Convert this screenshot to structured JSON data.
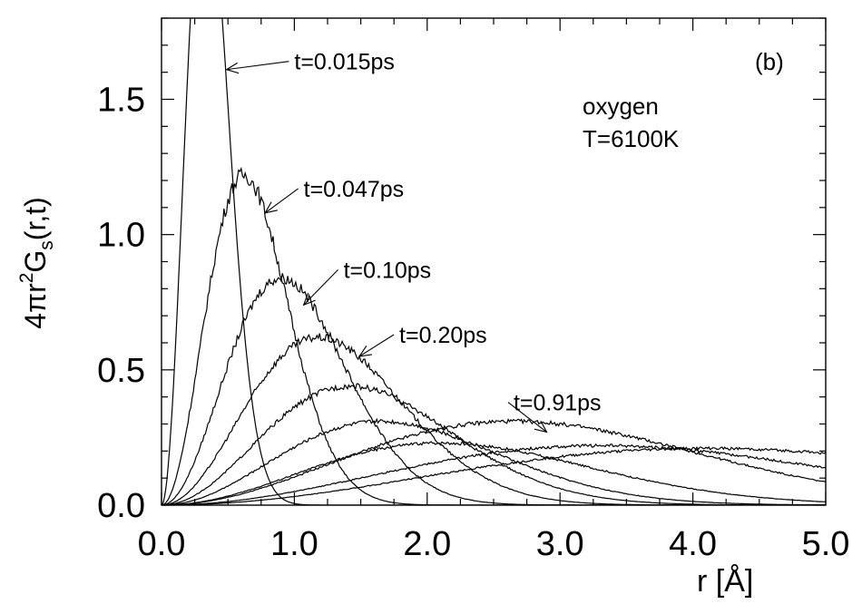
{
  "chart_data": {
    "type": "line",
    "panel_label": "(b)",
    "species": "oxygen",
    "temperature": "T=6100K",
    "xlabel": "r [Å]",
    "ylabel": {
      "pre": "4πr",
      "sup": "2",
      "mid": "G",
      "sub": "s",
      "post": "(r,t)"
    },
    "xlim": [
      0,
      5
    ],
    "ylim": [
      0,
      1.8
    ],
    "xticks": [
      "0.0",
      "1.0",
      "2.0",
      "3.0",
      "4.0",
      "5.0"
    ],
    "yticks": [
      "0.0",
      "0.5",
      "1.0",
      "1.5"
    ],
    "series": [
      {
        "peak": [
          0.33,
          2.35
        ],
        "width": 0.19
      },
      {
        "peak": [
          0.62,
          1.22
        ],
        "width": 0.36
      },
      {
        "peak": [
          0.9,
          0.84
        ],
        "width": 0.52
      },
      {
        "peak": [
          1.18,
          0.62
        ],
        "width": 0.71
      },
      {
        "peak": [
          1.42,
          0.44
        ],
        "width": 0.96
      },
      {
        "peak": [
          1.65,
          0.31
        ],
        "width": 1.3
      },
      {
        "peak": [
          2.1,
          0.23
        ],
        "width": 1.78
      },
      {
        "peak": [
          2.65,
          0.31
        ],
        "width": 2.4
      },
      {
        "peak": [
          3.3,
          0.22
        ],
        "width": 3.2
      },
      {
        "peak": [
          4.1,
          0.21
        ],
        "width": 4.4
      }
    ],
    "annotations": [
      {
        "text": "t=0.015ps",
        "text_at": [
          1.0,
          1.61
        ],
        "arrow_to": [
          0.49,
          1.61
        ]
      },
      {
        "text": "t=0.047ps",
        "text_at": [
          1.07,
          1.14
        ],
        "arrow_to": [
          0.78,
          1.08
        ]
      },
      {
        "text": "t=0.10ps",
        "text_at": [
          1.37,
          0.84
        ],
        "arrow_to": [
          1.07,
          0.74
        ]
      },
      {
        "text": "t=0.20ps",
        "text_at": [
          1.79,
          0.6
        ],
        "arrow_to": [
          1.49,
          0.55
        ]
      },
      {
        "text": "t=0.91ps",
        "text_at": [
          2.65,
          0.35
        ],
        "arrow_to": [
          2.9,
          0.27
        ]
      }
    ]
  }
}
